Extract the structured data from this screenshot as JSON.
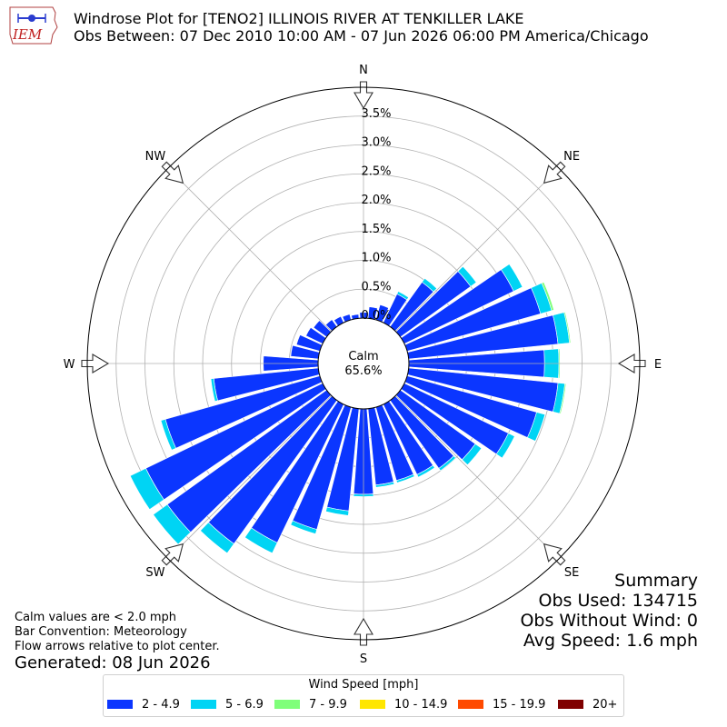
{
  "header": {
    "title_line1": "Windrose Plot for [TENO2] ILLINOIS RIVER  AT TENKILLER LAKE",
    "title_line2": "Obs Between: 07 Dec 2010 10:00 AM - 07 Jun 2026 06:00 PM America/Chicago",
    "logo_text": "IEM"
  },
  "summary": {
    "heading": "Summary",
    "obs_used": "Obs Used: 134715",
    "obs_without_wind": "Obs Without Wind: 0",
    "avg_speed": "Avg Speed: 1.6 mph"
  },
  "notes": {
    "calm_def": "Calm values are < 2.0 mph",
    "bar_convention": "Bar Convention: Meteorology",
    "flow_arrows": "Flow arrows relative to plot center.",
    "generated": "Generated: 08 Jun 2026"
  },
  "legend": {
    "title": "Wind Speed [mph]",
    "items": [
      {
        "label": "2 - 4.9",
        "color": "#0b36ff"
      },
      {
        "label": "5 - 6.9",
        "color": "#00d4f4"
      },
      {
        "label": "7 - 9.9",
        "color": "#7fff7a"
      },
      {
        "label": "10 - 14.9",
        "color": "#ffe600"
      },
      {
        "label": "15 - 19.9",
        "color": "#ff4a00"
      },
      {
        "label": "20+",
        "color": "#7f0000"
      }
    ]
  },
  "chart_data": {
    "type": "windrose",
    "calm_label": "Calm",
    "calm_percent": "65.6%",
    "radial_ticks": [
      "0.0%",
      "0.5%",
      "1.0%",
      "1.5%",
      "2.0%",
      "2.5%",
      "3.0%",
      "3.5%"
    ],
    "radial_tick_values": [
      0.0,
      0.5,
      1.0,
      1.5,
      2.0,
      2.5,
      3.0,
      3.5
    ],
    "radial_max": 4.0,
    "directions": [
      "N",
      "NE",
      "E",
      "SE",
      "S",
      "SW",
      "W",
      "NW"
    ],
    "direction_angles_deg": [
      0,
      45,
      90,
      135,
      180,
      225,
      270,
      315
    ],
    "sector_angles_deg": [
      0,
      10,
      20,
      30,
      40,
      50,
      60,
      70,
      80,
      90,
      100,
      110,
      120,
      130,
      140,
      150,
      160,
      170,
      180,
      190,
      200,
      210,
      220,
      230,
      240,
      250,
      260,
      270,
      280,
      290,
      300,
      310,
      320,
      330,
      340,
      350
    ],
    "series": [
      {
        "name": "2 - 4.9",
        "values": [
          0.1,
          0.2,
          0.27,
          0.55,
          0.95,
          1.5,
          2.1,
          2.4,
          2.6,
          2.35,
          2.6,
          2.33,
          2.0,
          1.6,
          1.45,
          1.35,
          1.32,
          1.33,
          1.48,
          1.78,
          2.2,
          2.66,
          3.06,
          3.4,
          3.4,
          2.78,
          1.82,
          0.95,
          0.48,
          0.42,
          0.32,
          0.28,
          0.15,
          0.12,
          0.1,
          0.07
        ]
      },
      {
        "name": "5 - 6.9",
        "values": [
          0.0,
          0.0,
          0.0,
          0.05,
          0.08,
          0.12,
          0.17,
          0.2,
          0.2,
          0.25,
          0.12,
          0.15,
          0.12,
          0.13,
          0.05,
          0.05,
          0.04,
          0.04,
          0.04,
          0.08,
          0.08,
          0.2,
          0.2,
          0.3,
          0.3,
          0.08,
          0.05,
          0.0,
          0.0,
          0.0,
          0.0,
          0.0,
          0.0,
          0.0,
          0.0,
          0.0
        ]
      },
      {
        "name": "7 - 9.9",
        "values": [
          0.0,
          0.0,
          0.0,
          0.0,
          0.0,
          0.0,
          0.0,
          0.04,
          0.02,
          0.02,
          0.02,
          0.0,
          0.0,
          0.0,
          0.0,
          0.0,
          0.0,
          0.0,
          0.0,
          0.0,
          0.0,
          0.0,
          0.0,
          0.0,
          0.0,
          0.0,
          0.0,
          0.0,
          0.0,
          0.0,
          0.0,
          0.0,
          0.0,
          0.0,
          0.0,
          0.0
        ]
      },
      {
        "name": "10 - 14.9",
        "values": [
          0,
          0,
          0,
          0,
          0,
          0,
          0,
          0,
          0,
          0,
          0,
          0,
          0,
          0,
          0,
          0,
          0,
          0,
          0,
          0,
          0,
          0,
          0,
          0,
          0,
          0,
          0,
          0,
          0,
          0,
          0,
          0,
          0,
          0,
          0,
          0
        ]
      },
      {
        "name": "15 - 19.9",
        "values": [
          0,
          0,
          0,
          0,
          0,
          0,
          0,
          0,
          0,
          0,
          0,
          0,
          0,
          0,
          0,
          0,
          0,
          0,
          0,
          0,
          0,
          0,
          0,
          0,
          0,
          0,
          0,
          0,
          0,
          0,
          0,
          0,
          0,
          0,
          0,
          0
        ]
      },
      {
        "name": "20+",
        "values": [
          0,
          0,
          0,
          0,
          0,
          0,
          0,
          0,
          0,
          0,
          0,
          0,
          0,
          0,
          0,
          0,
          0,
          0,
          0,
          0,
          0,
          0,
          0,
          0,
          0,
          0,
          0,
          0,
          0,
          0,
          0,
          0,
          0,
          0,
          0,
          0
        ]
      }
    ]
  }
}
